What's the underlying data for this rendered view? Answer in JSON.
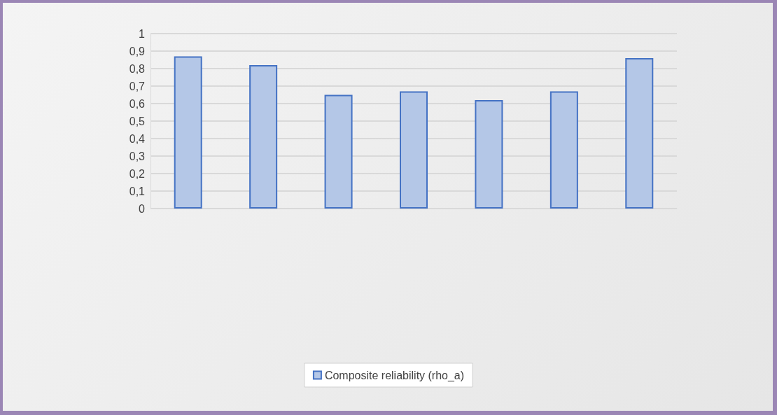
{
  "chart_data": {
    "type": "bar",
    "categories": [
      null,
      null,
      null,
      null,
      null,
      null,
      null
    ],
    "series": [
      {
        "name": "Composite reliability (rho_a)",
        "color": "#b4c7e7",
        "values": [
          0.87,
          0.82,
          0.65,
          0.67,
          0.62,
          0.67,
          0.86
        ]
      }
    ],
    "ylim": [
      0,
      1
    ],
    "yticks": [
      0,
      {
        "value": 0.1,
        "label": "0,1"
      },
      {
        "value": 0.2,
        "label": "0,2"
      },
      {
        "value": 0.3,
        "label": "0,3"
      },
      {
        "value": 0.4,
        "label": "0,4"
      },
      {
        "value": 0.5,
        "label": "0,5"
      },
      {
        "value": 0.6,
        "label": "0,6"
      },
      {
        "value": 0.7,
        "label": "0,7"
      },
      {
        "value": 0.8,
        "label": "0,8"
      },
      {
        "value": 0.9,
        "label": "0,9"
      },
      1
    ],
    "grid": "y",
    "legend": "bottom"
  }
}
